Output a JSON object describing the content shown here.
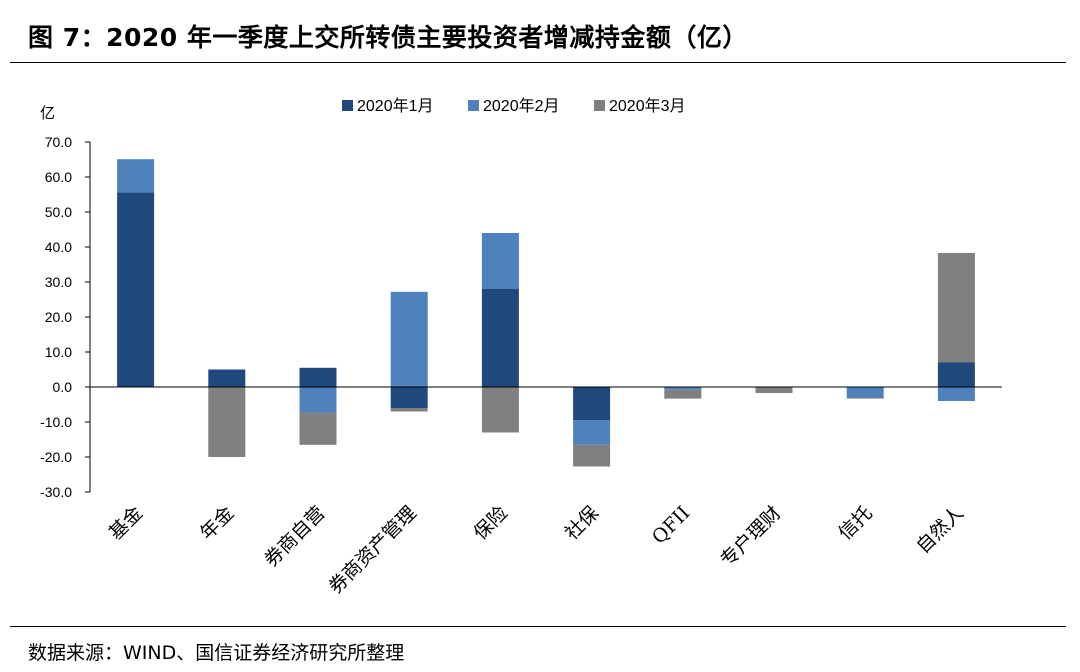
{
  "header": {
    "title": "图 7：2020 年一季度上交所转债主要投资者增减持金额（亿）"
  },
  "footer": {
    "source": "数据来源：WIND、国信证券经济研究所整理"
  },
  "chart_data": {
    "type": "bar",
    "stacked": true,
    "unit": "亿",
    "categories": [
      "基金",
      "年金",
      "券商自营",
      "券商资产管理",
      "保险",
      "社保",
      "QFII",
      "专户理财",
      "信托",
      "自然人"
    ],
    "series": [
      {
        "name": "2020年1月",
        "color": "#1f497d",
        "values": [
          55.6,
          5.0,
          5.5,
          -6.0,
          28.0,
          -9.5,
          0.0,
          0.0,
          0.0,
          7.0
        ]
      },
      {
        "name": "2020年2月",
        "color": "#4f81bd",
        "values": [
          9.5,
          0.0,
          -7.3,
          27.2,
          16.0,
          -7.0,
          -0.8,
          0.0,
          -3.0,
          -4.0
        ]
      },
      {
        "name": "2020年3月",
        "color": "#808080",
        "values": [
          0.0,
          -20.0,
          -9.2,
          -1.0,
          -13.0,
          -6.2,
          -2.5,
          -1.7,
          -0.3,
          31.3
        ]
      }
    ],
    "ylim": [
      -30,
      70
    ],
    "yticks": [
      "70.0",
      "60.0",
      "50.0",
      "40.0",
      "30.0",
      "20.0",
      "10.0",
      "0.0",
      "-10.0",
      "-20.0",
      "-30.0"
    ],
    "ytick_values": [
      70,
      60,
      50,
      40,
      30,
      20,
      10,
      0,
      -10,
      -20,
      -30
    ],
    "legend_position": "top",
    "grid": false
  }
}
